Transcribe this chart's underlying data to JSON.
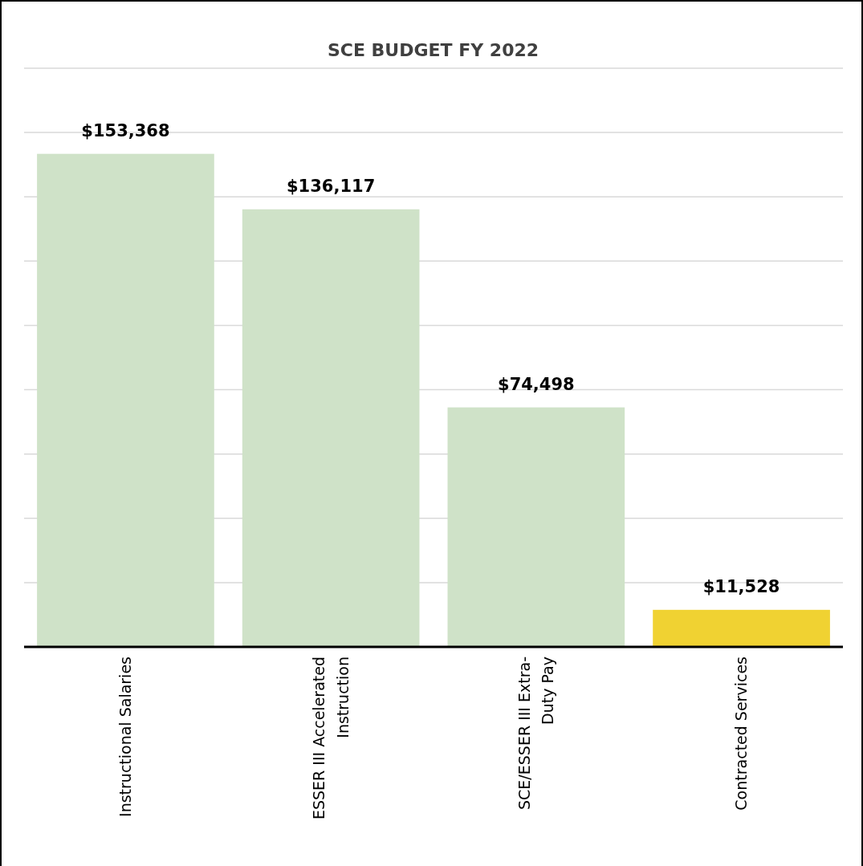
{
  "chart_data": {
    "type": "bar",
    "title": "SCE BUDGET FY 2022",
    "categories": [
      "Instructional Salaries",
      "ESSER III Accelerated Instruction",
      "SCE/ESSER III Extra-Duty Pay",
      "Contracted Services"
    ],
    "values": [
      153368,
      136117,
      74498,
      11528
    ],
    "colors": [
      "#cfe2c8",
      "#cfe2c8",
      "#cfe2c8",
      "#f0d232"
    ],
    "value_labels": [
      "$153,368",
      "$136,117",
      "$74,498",
      "$11,528"
    ],
    "ylim": [
      0,
      180000
    ],
    "yticks": [
      {
        "value": 0,
        "label": null
      },
      {
        "value": 20000,
        "label": null
      },
      {
        "value": 40000,
        "label": null
      },
      {
        "value": 60000,
        "label": null
      },
      {
        "value": 80000,
        "label": null
      },
      {
        "value": 100000,
        "label": null
      },
      {
        "value": 120000,
        "label": null
      },
      {
        "value": 140000,
        "label": null
      },
      {
        "value": 160000,
        "label": null
      },
      {
        "value": 180000,
        "label": null
      }
    ],
    "grid": true,
    "tick_labels": "x"
  }
}
